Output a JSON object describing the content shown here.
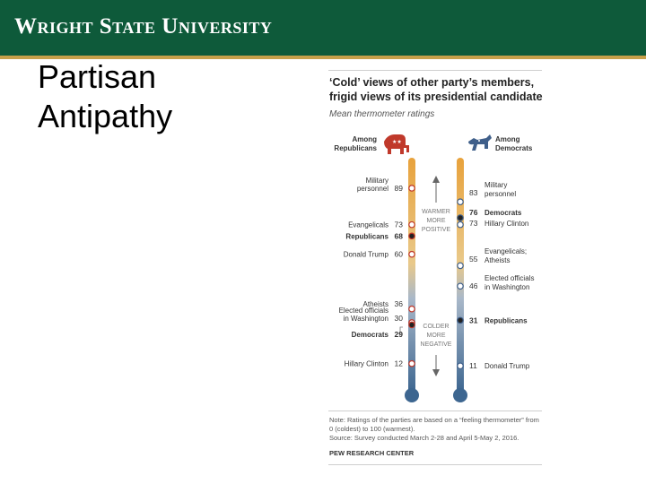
{
  "header": {
    "university": "Wright State University"
  },
  "slide": {
    "title": "Partisan\nAntipathy"
  },
  "figure": {
    "title_line1": "‘Cold’ views of other party’s members,",
    "title_line2": "frigid views of its presidential candidate",
    "subtitle": "Mean thermometer ratings",
    "note": "Note: Ratings of the parties are based on a “feeling thermometer” from 0 (coldest) to 100 (warmest).",
    "source": "Source: Survey conducted March 2-28 and April 5-May 2, 2016.",
    "credit": "PEW RESEARCH CENTER",
    "warmer": [
      "WARMER",
      "MORE",
      "POSITIVE"
    ],
    "colder": [
      "COLDER",
      "MORE",
      "NEGATIVE"
    ],
    "colors": {
      "rep": "#c0392b",
      "dem": "#3f5f8a",
      "warm": "#e8a23c",
      "cold": "#3d6690",
      "banner": "#0e5a3a"
    }
  },
  "chart_data": {
    "type": "thermometer",
    "title": "‘Cold’ views of other party’s members, frigid views of its presidential candidate",
    "subtitle": "Mean thermometer ratings",
    "scale": [
      0,
      100
    ],
    "series": [
      {
        "name": "Among Republicans",
        "icon": "elephant-icon",
        "points": [
          {
            "label": "Military personnel",
            "value": 89,
            "emphasis": false
          },
          {
            "label": "Evangelicals",
            "value": 73,
            "emphasis": false
          },
          {
            "label": "Republicans",
            "value": 68,
            "emphasis": true
          },
          {
            "label": "Donald Trump",
            "value": 60,
            "emphasis": false
          },
          {
            "label": "Atheists",
            "value": 36,
            "emphasis": false
          },
          {
            "label": "Elected officials in Washington",
            "value": 30,
            "emphasis": false
          },
          {
            "label": "Democrats",
            "value": 29,
            "emphasis": true
          },
          {
            "label": "Hillary Clinton",
            "value": 12,
            "emphasis": false
          }
        ]
      },
      {
        "name": "Among Democrats",
        "icon": "donkey-icon",
        "points": [
          {
            "label": "Military personnel",
            "value": 83,
            "emphasis": false
          },
          {
            "label": "Democrats",
            "value": 76,
            "emphasis": true
          },
          {
            "label": "Hillary Clinton",
            "value": 73,
            "emphasis": false
          },
          {
            "label": "Evangelicals; Atheists",
            "value": 55,
            "emphasis": false
          },
          {
            "label": "Elected officials in Washington",
            "value": 46,
            "emphasis": false
          },
          {
            "label": "Republicans",
            "value": 31,
            "emphasis": true
          },
          {
            "label": "Donald Trump",
            "value": 11,
            "emphasis": false
          }
        ]
      }
    ]
  }
}
